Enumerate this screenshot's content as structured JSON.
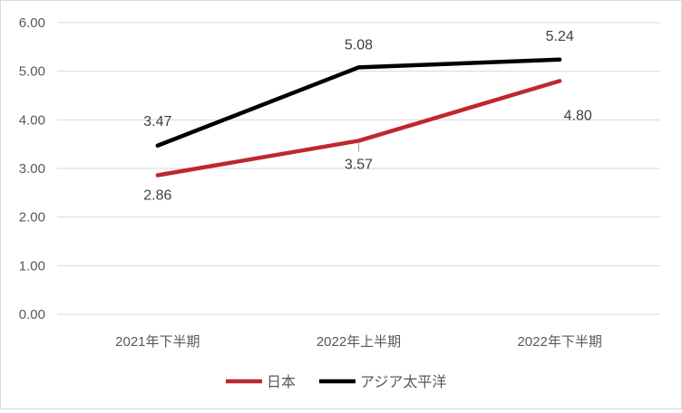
{
  "chart_data": {
    "type": "line",
    "title": "",
    "xlabel": "",
    "ylabel": "",
    "categories": [
      "2021年下半期",
      "2022年上半期",
      "2022年下半期"
    ],
    "ylim": [
      0,
      6
    ],
    "y_ticks": [
      "0.00",
      "1.00",
      "2.00",
      "3.00",
      "4.00",
      "5.00",
      "6.00"
    ],
    "grid": true,
    "legend_position": "bottom",
    "series": [
      {
        "name": "日本",
        "values": [
          2.86,
          3.57,
          4.8
        ],
        "labels": [
          "2.86",
          "3.57",
          "4.80"
        ],
        "color": "#c0272d"
      },
      {
        "name": "アジア太平洋",
        "values": [
          3.47,
          5.08,
          5.24
        ],
        "labels": [
          "3.47",
          "5.08",
          "5.24"
        ],
        "color": "#000000"
      }
    ]
  }
}
